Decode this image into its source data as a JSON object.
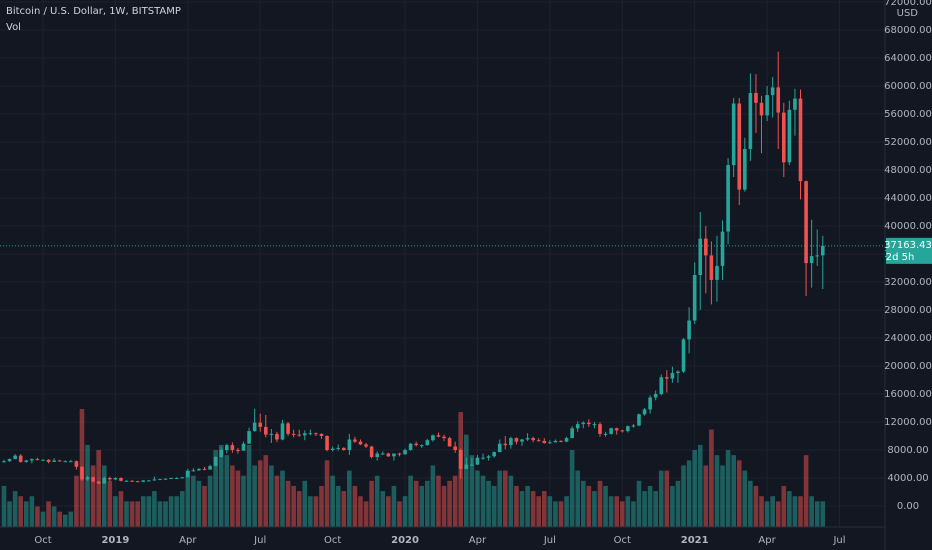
{
  "chart_data": {
    "type": "candlestick",
    "title": "Bitcoin / U.S. Dollar, 1W, BITSTAMP",
    "volume_label": "Vol",
    "currency": "USD",
    "countdown": "2d 5h",
    "up_color": "#26a69a",
    "down_color": "#ef5350",
    "grid": true,
    "ylim": [
      -3000,
      72286
    ],
    "yticks": [
      {
        "value": 0,
        "label": "0.00"
      },
      {
        "value": 4000,
        "label": "4000.00"
      },
      {
        "value": 8000,
        "label": "8000.00"
      },
      {
        "value": 12000,
        "label": "12000.00"
      },
      {
        "value": 16000,
        "label": "16000.00"
      },
      {
        "value": 20000,
        "label": "20000.00"
      },
      {
        "value": 24000,
        "label": "24000.00"
      },
      {
        "value": 28000,
        "label": "28000.00"
      },
      {
        "value": 32000,
        "label": "32000.00"
      },
      {
        "value": 36000,
        "label": "36000.00"
      },
      {
        "value": 40000,
        "label": "40000.00"
      },
      {
        "value": 44000,
        "label": "44000.00"
      },
      {
        "value": 48000,
        "label": "48000.00"
      },
      {
        "value": 52000,
        "label": "52000.00"
      },
      {
        "value": 56000,
        "label": "56000.00"
      },
      {
        "value": 60000,
        "label": "60000.00"
      },
      {
        "value": 64000,
        "label": "64000.00"
      },
      {
        "value": 68000,
        "label": "68000.00"
      },
      {
        "value": 72000,
        "label": "72000.00"
      }
    ],
    "xticks": [
      {
        "value": 7,
        "label": "Oct"
      },
      {
        "value": 20,
        "label": "2019"
      },
      {
        "value": 33,
        "label": "Apr"
      },
      {
        "value": 46,
        "label": "Jul"
      },
      {
        "value": 59,
        "label": "Oct"
      },
      {
        "value": 72,
        "label": "2020"
      },
      {
        "value": 85,
        "label": "Apr"
      },
      {
        "value": 98,
        "label": "Jul"
      },
      {
        "value": 111,
        "label": "Oct"
      },
      {
        "value": 124,
        "label": "2021"
      },
      {
        "value": 137,
        "label": "Apr"
      },
      {
        "value": 150,
        "label": "Jul"
      }
    ],
    "ohlc": [
      [
        6300,
        6600,
        6200,
        6400
      ],
      [
        6400,
        6800,
        6300,
        6700
      ],
      [
        6700,
        7400,
        6700,
        7200
      ],
      [
        7200,
        7400,
        6200,
        6300
      ],
      [
        6300,
        6600,
        6200,
        6500
      ],
      [
        6500,
        6800,
        6100,
        6700
      ],
      [
        6700,
        6900,
        6500,
        6600
      ],
      [
        6600,
        6700,
        6500,
        6600
      ],
      [
        6600,
        6700,
        6100,
        6300
      ],
      [
        6300,
        6800,
        6300,
        6500
      ],
      [
        6500,
        6600,
        6400,
        6400
      ],
      [
        6400,
        6500,
        6300,
        6400
      ],
      [
        6400,
        6600,
        6300,
        6400
      ],
      [
        6400,
        6500,
        5200,
        5600
      ],
      [
        5600,
        5700,
        3600,
        3800
      ],
      [
        3800,
        4300,
        3600,
        4100
      ],
      [
        4100,
        4200,
        3400,
        3500
      ],
      [
        3500,
        3600,
        3100,
        3200
      ],
      [
        3200,
        4200,
        3200,
        4000
      ],
      [
        4000,
        4200,
        3600,
        3800
      ],
      [
        3800,
        4100,
        3700,
        4000
      ],
      [
        4000,
        4100,
        3500,
        3600
      ],
      [
        3600,
        3700,
        3500,
        3600
      ],
      [
        3600,
        3700,
        3500,
        3550
      ],
      [
        3550,
        3600,
        3400,
        3450
      ],
      [
        3450,
        3700,
        3400,
        3650
      ],
      [
        3650,
        3700,
        3550,
        3650
      ],
      [
        3650,
        4200,
        3600,
        3800
      ],
      [
        3800,
        3900,
        3700,
        3850
      ],
      [
        3850,
        3950,
        3750,
        3900
      ],
      [
        3900,
        4050,
        3850,
        4000
      ],
      [
        4000,
        4100,
        3950,
        4000
      ],
      [
        4000,
        4150,
        3950,
        4100
      ],
      [
        4100,
        5300,
        4100,
        5000
      ],
      [
        5000,
        5400,
        4900,
        5100
      ],
      [
        5100,
        5400,
        5000,
        5300
      ],
      [
        5300,
        5600,
        5100,
        5200
      ],
      [
        5200,
        5900,
        5200,
        5700
      ],
      [
        5700,
        7100,
        5700,
        7000
      ],
      [
        7000,
        8400,
        6900,
        8000
      ],
      [
        8000,
        8900,
        7500,
        8700
      ],
      [
        8700,
        9100,
        7600,
        8000
      ],
      [
        8000,
        8300,
        7500,
        7900
      ],
      [
        7900,
        9200,
        7900,
        8900
      ],
      [
        8900,
        11200,
        8900,
        10700
      ],
      [
        10700,
        13900,
        10600,
        11900
      ],
      [
        11900,
        13200,
        10600,
        11300
      ],
      [
        11300,
        13000,
        9800,
        10200
      ],
      [
        10200,
        11000,
        9000,
        10300
      ],
      [
        10300,
        10600,
        9100,
        9500
      ],
      [
        9500,
        12300,
        9400,
        11800
      ],
      [
        11800,
        12000,
        10000,
        10300
      ],
      [
        10300,
        10900,
        9800,
        10200
      ],
      [
        10200,
        10900,
        9900,
        10100
      ],
      [
        10100,
        10800,
        9400,
        10400
      ],
      [
        10400,
        10900,
        10100,
        10400
      ],
      [
        10400,
        10500,
        10000,
        10300
      ],
      [
        10300,
        10400,
        9600,
        10000
      ],
      [
        10000,
        10100,
        7800,
        8000
      ],
      [
        8000,
        8500,
        7800,
        8200
      ],
      [
        8200,
        8800,
        7900,
        8300
      ],
      [
        8300,
        8400,
        7900,
        8000
      ],
      [
        8000,
        10300,
        7300,
        9500
      ],
      [
        9500,
        9900,
        9000,
        9200
      ],
      [
        9200,
        9500,
        8700,
        8800
      ],
      [
        8800,
        9000,
        8300,
        8500
      ],
      [
        8500,
        8600,
        6800,
        7000
      ],
      [
        7000,
        7800,
        6500,
        7500
      ],
      [
        7500,
        7800,
        7300,
        7500
      ],
      [
        7500,
        7600,
        7000,
        7100
      ],
      [
        7100,
        7500,
        6500,
        7500
      ],
      [
        7500,
        7600,
        7100,
        7400
      ],
      [
        7400,
        8200,
        7300,
        8000
      ],
      [
        8000,
        9000,
        7900,
        8900
      ],
      [
        8900,
        9200,
        8500,
        8700
      ],
      [
        8700,
        8800,
        8300,
        8700
      ],
      [
        8700,
        9600,
        8600,
        9400
      ],
      [
        9400,
        10200,
        9200,
        10100
      ],
      [
        10100,
        10500,
        9800,
        9900
      ],
      [
        9900,
        10200,
        9300,
        9700
      ],
      [
        9700,
        9900,
        8500,
        8500
      ],
      [
        8500,
        9200,
        7600,
        8000
      ],
      [
        8000,
        8200,
        3900,
        5300
      ],
      [
        5300,
        6900,
        5300,
        5900
      ],
      [
        5900,
        6900,
        5700,
        5900
      ],
      [
        5900,
        7300,
        5900,
        6900
      ],
      [
        6900,
        7500,
        6600,
        6900
      ],
      [
        6900,
        7300,
        6500,
        7100
      ],
      [
        7100,
        7800,
        6900,
        7700
      ],
      [
        7700,
        9500,
        7700,
        8900
      ],
      [
        8900,
        10000,
        8100,
        8700
      ],
      [
        8700,
        9900,
        8200,
        9700
      ],
      [
        9700,
        9800,
        8800,
        9200
      ],
      [
        9200,
        9600,
        8600,
        9500
      ],
      [
        9500,
        10400,
        9300,
        9700
      ],
      [
        9700,
        9900,
        9100,
        9400
      ],
      [
        9400,
        9700,
        9200,
        9300
      ],
      [
        9300,
        9700,
        8900,
        9000
      ],
      [
        9000,
        9400,
        8900,
        9100
      ],
      [
        9100,
        9500,
        9100,
        9300
      ],
      [
        9300,
        9400,
        9100,
        9200
      ],
      [
        9200,
        9900,
        9100,
        9700
      ],
      [
        9700,
        11400,
        9700,
        11100
      ],
      [
        11100,
        12100,
        10600,
        11700
      ],
      [
        11700,
        12100,
        11100,
        11900
      ],
      [
        11900,
        12400,
        11300,
        11700
      ],
      [
        11700,
        12000,
        11100,
        11700
      ],
      [
        11700,
        12000,
        9900,
        10300
      ],
      [
        10300,
        10600,
        9900,
        10300
      ],
      [
        10300,
        11200,
        10200,
        11100
      ],
      [
        11100,
        11200,
        10200,
        10800
      ],
      [
        10800,
        10900,
        10500,
        10700
      ],
      [
        10700,
        11500,
        10500,
        11400
      ],
      [
        11400,
        11700,
        11200,
        11500
      ],
      [
        11500,
        13200,
        11400,
        13100
      ],
      [
        13100,
        14000,
        12900,
        13800
      ],
      [
        13800,
        15800,
        13200,
        15500
      ],
      [
        15500,
        16500,
        15100,
        16000
      ],
      [
        16000,
        18800,
        15800,
        18400
      ],
      [
        18400,
        19400,
        16200,
        18200
      ],
      [
        18200,
        19900,
        17600,
        19000
      ],
      [
        19000,
        19400,
        17600,
        19200
      ],
      [
        19200,
        24000,
        19000,
        23800
      ],
      [
        23800,
        28400,
        21800,
        26500
      ],
      [
        26500,
        34800,
        26000,
        33000
      ],
      [
        33000,
        42000,
        28000,
        38200
      ],
      [
        38200,
        40000,
        30400,
        35800
      ],
      [
        35800,
        37800,
        28800,
        32300
      ],
      [
        32300,
        38600,
        29200,
        34300
      ],
      [
        34300,
        40800,
        32300,
        39200
      ],
      [
        39200,
        49700,
        37400,
        48700
      ],
      [
        48700,
        58300,
        47000,
        57500
      ],
      [
        57500,
        58300,
        43000,
        45200
      ],
      [
        45200,
        52600,
        44900,
        51000
      ],
      [
        51000,
        61800,
        49300,
        59000
      ],
      [
        59000,
        61700,
        53300,
        57600
      ],
      [
        57600,
        58600,
        50400,
        55800
      ],
      [
        55800,
        60000,
        55000,
        58700
      ],
      [
        58700,
        61300,
        55500,
        59800
      ],
      [
        59800,
        64900,
        51000,
        56200
      ],
      [
        56200,
        57600,
        47000,
        49100
      ],
      [
        49100,
        57900,
        48700,
        56600
      ],
      [
        56600,
        59600,
        52900,
        58200
      ],
      [
        58200,
        59500,
        43800,
        46400
      ],
      [
        46400,
        46500,
        30000,
        34700
      ],
      [
        34700,
        40900,
        31200,
        35700
      ],
      [
        35700,
        39500,
        34300,
        35800
      ],
      [
        35800,
        38600,
        31000,
        37163.43
      ]
    ],
    "volume": [
      40,
      25,
      35,
      30,
      25,
      30,
      20,
      15,
      25,
      20,
      15,
      12,
      15,
      50,
      115,
      80,
      60,
      75,
      60,
      45,
      30,
      35,
      25,
      25,
      25,
      30,
      30,
      35,
      25,
      25,
      30,
      30,
      35,
      55,
      50,
      45,
      40,
      50,
      75,
      80,
      70,
      60,
      55,
      50,
      80,
      60,
      65,
      70,
      60,
      50,
      55,
      45,
      40,
      35,
      45,
      30,
      30,
      40,
      65,
      50,
      40,
      35,
      55,
      40,
      30,
      25,
      45,
      50,
      35,
      30,
      40,
      25,
      30,
      50,
      45,
      40,
      45,
      60,
      50,
      40,
      45,
      50,
      112,
      90,
      70,
      55,
      50,
      45,
      40,
      55,
      55,
      50,
      40,
      35,
      40,
      35,
      30,
      35,
      30,
      25,
      25,
      30,
      75,
      55,
      45,
      40,
      35,
      45,
      40,
      30,
      30,
      25,
      30,
      25,
      45,
      35,
      40,
      35,
      55,
      55,
      40,
      45,
      60,
      65,
      75,
      80,
      60,
      95,
      70,
      60,
      75,
      70,
      65,
      55,
      45,
      40,
      30,
      25,
      30,
      25,
      40,
      35,
      30,
      30,
      70,
      30,
      25,
      25
    ]
  }
}
